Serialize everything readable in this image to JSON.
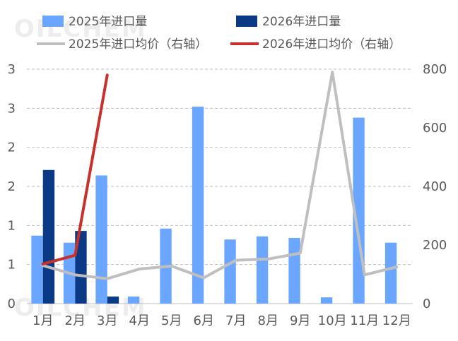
{
  "watermark": "OILCHEM",
  "chart_data": {
    "type": "bar",
    "categories": [
      "1月",
      "2月",
      "3月",
      "4月",
      "5月",
      "6月",
      "7月",
      "8月",
      "9月",
      "10月",
      "11月",
      "12月"
    ],
    "series": [
      {
        "name": "2025年进口量",
        "kind": "bar",
        "axis": "left",
        "color": "#6aa6ff",
        "values": [
          0.87,
          0.78,
          1.64,
          0.09,
          0.96,
          2.52,
          0.82,
          0.86,
          0.84,
          0.08,
          2.38,
          0.78
        ]
      },
      {
        "name": "2026年进口量",
        "kind": "bar",
        "axis": "left",
        "color": "#0a3a86",
        "values": [
          1.71,
          0.93,
          0.09,
          null,
          null,
          null,
          null,
          null,
          null,
          null,
          null,
          null
        ]
      },
      {
        "name": "2025年进口均价（右轴）",
        "kind": "line",
        "axis": "right",
        "color": "#bfbfbf",
        "values": [
          130,
          98,
          85,
          118,
          128,
          88,
          148,
          152,
          172,
          790,
          98,
          125
        ]
      },
      {
        "name": "2026年进口均价（右轴）",
        "kind": "line",
        "axis": "right",
        "color": "#c8302a",
        "values": [
          135,
          165,
          780,
          null,
          null,
          null,
          null,
          null,
          null,
          null,
          null,
          null
        ]
      }
    ],
    "y_left": {
      "ylim": [
        0,
        3
      ],
      "tick_labels": [
        "0",
        "1",
        "1",
        "2",
        "2",
        "3",
        "3"
      ]
    },
    "y_right": {
      "ylim": [
        0,
        800
      ],
      "tick_labels": [
        "0",
        "200",
        "400",
        "600",
        "800"
      ]
    },
    "grid": true,
    "legend_position": "top"
  }
}
